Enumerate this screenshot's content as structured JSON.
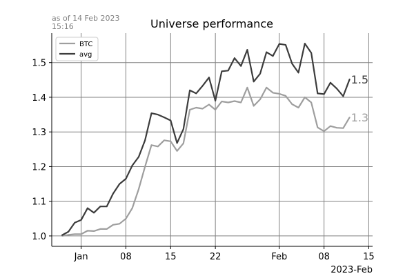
{
  "note_line1": "as of 14 Feb 2023",
  "note_line2": "15:16",
  "chart_data": {
    "type": "line",
    "title": "Universe performance",
    "xlabel": "",
    "ylabel": "",
    "x_offset_label": "2023-Feb",
    "x_start": "2022-12-29",
    "x_end": "2023-02-14",
    "x_ticks": [
      {
        "date": "2023-01-01",
        "label": "Jan"
      },
      {
        "date": "2023-01-08",
        "label": "08"
      },
      {
        "date": "2023-01-15",
        "label": "15"
      },
      {
        "date": "2023-01-22",
        "label": "22"
      },
      {
        "date": "2023-02-01",
        "label": "Feb"
      },
      {
        "date": "2023-02-08",
        "label": "08"
      },
      {
        "date": "2023-02-15",
        "label": "15"
      }
    ],
    "y_ticks": [
      "1.0",
      "1.1",
      "1.2",
      "1.3",
      "1.4",
      "1.5"
    ],
    "ylim": [
      0.97,
      1.585
    ],
    "grid": true,
    "legend_position": "top-left",
    "series": [
      {
        "name": "BTC",
        "color": "#9e9e9e",
        "end_label": "1.3",
        "values": [
          1.0,
          1.003,
          1.005,
          1.005,
          1.015,
          1.014,
          1.02,
          1.02,
          1.032,
          1.035,
          1.05,
          1.08,
          1.135,
          1.2,
          1.262,
          1.258,
          1.276,
          1.273,
          1.245,
          1.267,
          1.364,
          1.37,
          1.367,
          1.379,
          1.364,
          1.388,
          1.385,
          1.389,
          1.385,
          1.428,
          1.375,
          1.394,
          1.428,
          1.413,
          1.41,
          1.404,
          1.38,
          1.37,
          1.4,
          1.385,
          1.313,
          1.302,
          1.317,
          1.312,
          1.311,
          1.342
        ]
      },
      {
        "name": "avg",
        "color": "#3c3c3c",
        "end_label": "1.5",
        "values": [
          1.002,
          1.012,
          1.038,
          1.046,
          1.08,
          1.067,
          1.085,
          1.085,
          1.122,
          1.15,
          1.165,
          1.203,
          1.228,
          1.276,
          1.354,
          1.35,
          1.342,
          1.333,
          1.268,
          1.308,
          1.42,
          1.411,
          1.433,
          1.457,
          1.39,
          1.475,
          1.477,
          1.513,
          1.49,
          1.537,
          1.445,
          1.468,
          1.53,
          1.519,
          1.554,
          1.551,
          1.497,
          1.471,
          1.555,
          1.528,
          1.411,
          1.409,
          1.442,
          1.425,
          1.403,
          1.452
        ]
      }
    ]
  }
}
